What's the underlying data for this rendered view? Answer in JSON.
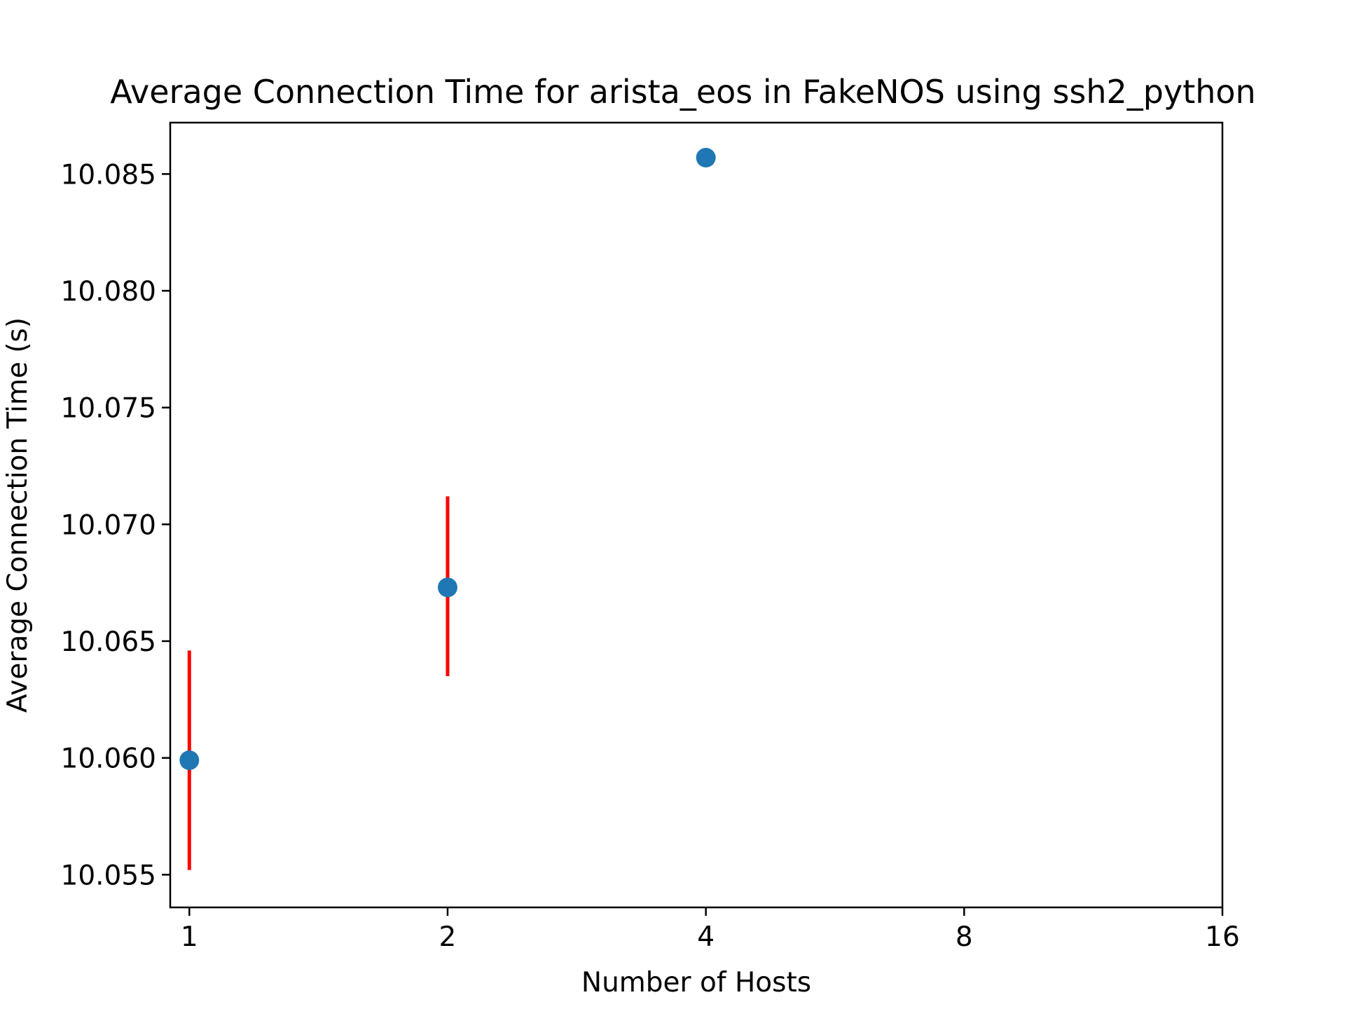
{
  "chart_data": {
    "type": "scatter",
    "title": "Average Connection Time for arista_eos in FakeNOS using ssh2_python",
    "xlabel": "Number of Hosts",
    "ylabel": "Average Connection Time (s)",
    "x_scale": "log2",
    "x_ticks": [
      "1",
      "2",
      "4",
      "8",
      "16"
    ],
    "x_tick_values": [
      1,
      2,
      4,
      8,
      16
    ],
    "y_ticks": [
      "10.055",
      "10.060",
      "10.065",
      "10.070",
      "10.075",
      "10.080",
      "10.085"
    ],
    "y_tick_values": [
      10.055,
      10.06,
      10.065,
      10.07,
      10.075,
      10.08,
      10.085
    ],
    "xlim": [
      0.95,
      16
    ],
    "ylim": [
      10.0536,
      10.0872
    ],
    "grid": false,
    "series": [
      {
        "x": [
          1,
          2,
          4
        ],
        "y": [
          10.0599,
          10.0673,
          10.0857
        ],
        "yerr_low": [
          10.0552,
          10.0635,
          null
        ],
        "yerr_high": [
          10.0646,
          10.0712,
          null
        ],
        "marker_color": "#1f77b4",
        "errorbar_color": "#ff0000"
      }
    ]
  }
}
